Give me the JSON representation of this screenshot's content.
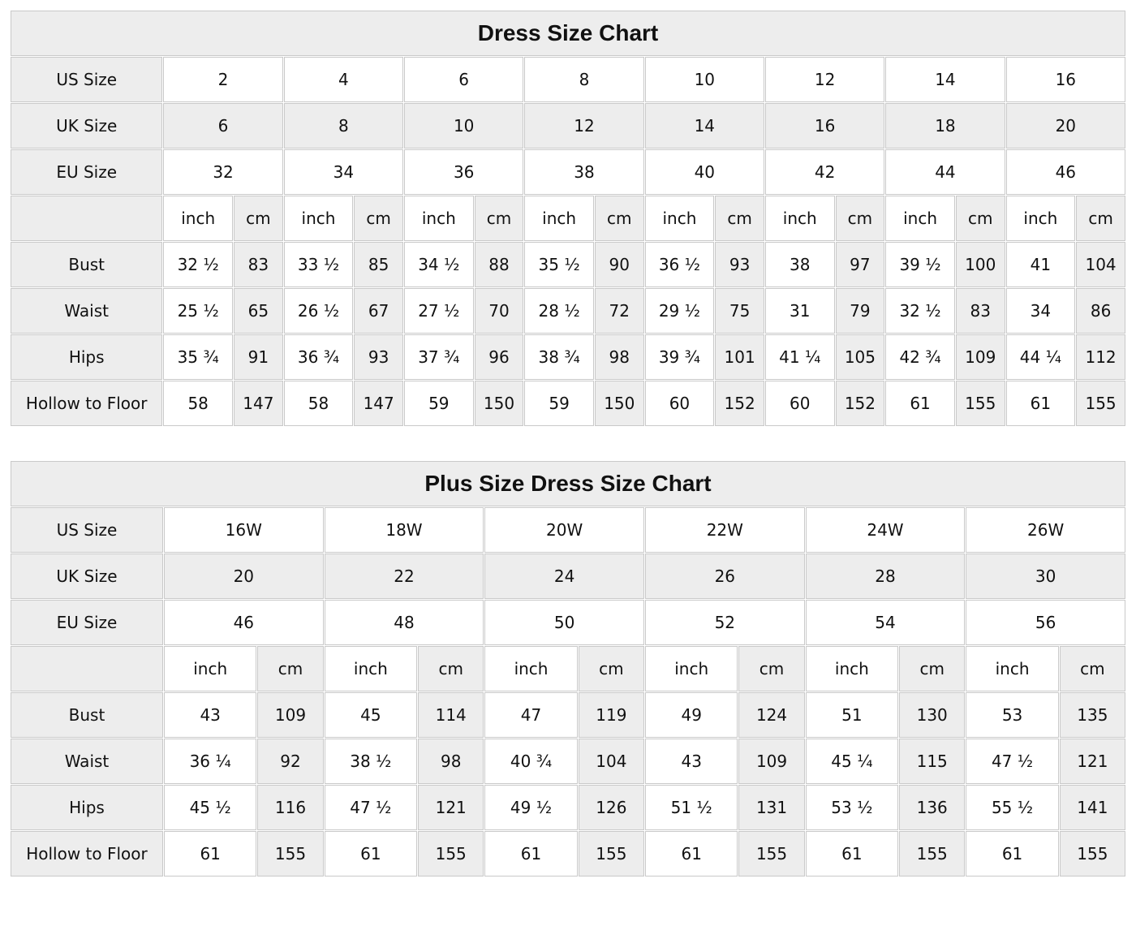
{
  "colors": {
    "page_bg": "#ffffff",
    "shaded_cell": "#ededed",
    "plain_cell": "#ffffff",
    "border": "#c9c9c9",
    "text": "#111111"
  },
  "tables": [
    {
      "id": "dress-size-chart",
      "title": "Dress Size Chart",
      "unit_labels": [
        "inch",
        "cm"
      ],
      "size_rows": [
        {
          "label": "US Size",
          "shaded": false,
          "values": [
            "2",
            "4",
            "6",
            "8",
            "10",
            "12",
            "14",
            "16"
          ]
        },
        {
          "label": "UK Size",
          "shaded": true,
          "values": [
            "6",
            "8",
            "10",
            "12",
            "14",
            "16",
            "18",
            "20"
          ]
        },
        {
          "label": "EU Size",
          "shaded": false,
          "values": [
            "32",
            "34",
            "36",
            "38",
            "40",
            "42",
            "44",
            "46"
          ]
        }
      ],
      "measurement_rows": [
        {
          "label": "Bust",
          "inch": [
            "32 ½",
            "33 ½",
            "34 ½",
            "35 ½",
            "36 ½",
            "38",
            "39 ½",
            "41"
          ],
          "cm": [
            "83",
            "85",
            "88",
            "90",
            "93",
            "97",
            "100",
            "104"
          ]
        },
        {
          "label": "Waist",
          "inch": [
            "25 ½",
            "26 ½",
            "27 ½",
            "28 ½",
            "29 ½",
            "31",
            "32 ½",
            "34"
          ],
          "cm": [
            "65",
            "67",
            "70",
            "72",
            "75",
            "79",
            "83",
            "86"
          ]
        },
        {
          "label": "Hips",
          "inch": [
            "35 ¾",
            "36 ¾",
            "37 ¾",
            "38 ¾",
            "39 ¾",
            "41 ¼",
            "42 ¾",
            "44 ¼"
          ],
          "cm": [
            "91",
            "93",
            "96",
            "98",
            "101",
            "105",
            "109",
            "112"
          ]
        },
        {
          "label": "Hollow to Floor",
          "inch": [
            "58",
            "58",
            "59",
            "59",
            "60",
            "60",
            "61",
            "61"
          ],
          "cm": [
            "147",
            "147",
            "150",
            "150",
            "152",
            "152",
            "155",
            "155"
          ]
        }
      ]
    },
    {
      "id": "plus-size-dress-size-chart",
      "title": "Plus Size Dress Size Chart",
      "unit_labels": [
        "inch",
        "cm"
      ],
      "size_rows": [
        {
          "label": "US Size",
          "shaded": false,
          "values": [
            "16W",
            "18W",
            "20W",
            "22W",
            "24W",
            "26W"
          ]
        },
        {
          "label": "UK Size",
          "shaded": true,
          "values": [
            "20",
            "22",
            "24",
            "26",
            "28",
            "30"
          ]
        },
        {
          "label": "EU Size",
          "shaded": false,
          "values": [
            "46",
            "48",
            "50",
            "52",
            "54",
            "56"
          ]
        }
      ],
      "measurement_rows": [
        {
          "label": "Bust",
          "inch": [
            "43",
            "45",
            "47",
            "49",
            "51",
            "53"
          ],
          "cm": [
            "109",
            "114",
            "119",
            "124",
            "130",
            "135"
          ]
        },
        {
          "label": "Waist",
          "inch": [
            "36 ¼",
            "38 ½",
            "40 ¾",
            "43",
            "45 ¼",
            "47 ½"
          ],
          "cm": [
            "92",
            "98",
            "104",
            "109",
            "115",
            "121"
          ]
        },
        {
          "label": "Hips",
          "inch": [
            "45 ½",
            "47 ½",
            "49 ½",
            "51 ½",
            "53 ½",
            "55 ½"
          ],
          "cm": [
            "116",
            "121",
            "126",
            "131",
            "136",
            "141"
          ]
        },
        {
          "label": "Hollow to Floor",
          "inch": [
            "61",
            "61",
            "61",
            "61",
            "61",
            "61"
          ],
          "cm": [
            "155",
            "155",
            "155",
            "155",
            "155",
            "155"
          ]
        }
      ]
    }
  ]
}
